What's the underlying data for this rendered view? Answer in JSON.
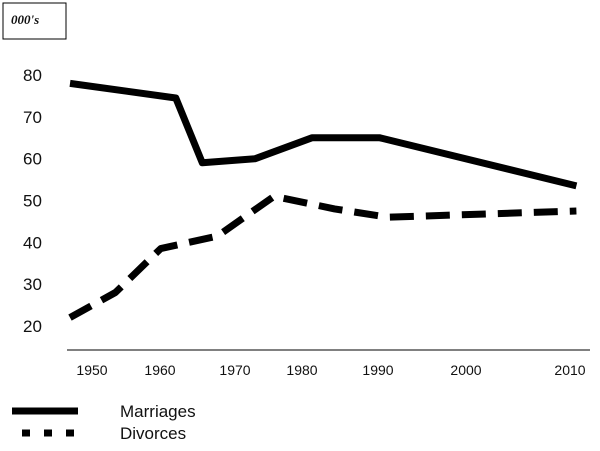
{
  "chart_data": {
    "type": "line",
    "unit_label": "000's",
    "x_ticks": [
      "1950",
      "1960",
      "1970",
      "1980",
      "1990",
      "2000",
      "2010"
    ],
    "y_ticks": [
      20,
      30,
      40,
      50,
      60,
      70,
      80
    ],
    "xlim": [
      1945,
      2013
    ],
    "ylim": [
      16,
      86
    ],
    "grid": false,
    "legend_position": "bottom-left",
    "series": [
      {
        "name": "Marriages",
        "style": "solid",
        "color": "#000000",
        "points": [
          {
            "x": 1945,
            "y": 78
          },
          {
            "x": 1959,
            "y": 74.5
          },
          {
            "x": 1962.5,
            "y": 59
          },
          {
            "x": 1969.5,
            "y": 60
          },
          {
            "x": 1977,
            "y": 65
          },
          {
            "x": 1986,
            "y": 65
          },
          {
            "x": 2012,
            "y": 53.5
          }
        ]
      },
      {
        "name": "Divorces",
        "style": "dashed",
        "color": "#000000",
        "points": [
          {
            "x": 1945,
            "y": 22
          },
          {
            "x": 1951,
            "y": 28
          },
          {
            "x": 1957,
            "y": 38.5
          },
          {
            "x": 1964.5,
            "y": 41.5
          },
          {
            "x": 1972,
            "y": 51
          },
          {
            "x": 1980,
            "y": 48
          },
          {
            "x": 1987,
            "y": 46
          },
          {
            "x": 2012,
            "y": 47.5
          }
        ]
      }
    ]
  }
}
